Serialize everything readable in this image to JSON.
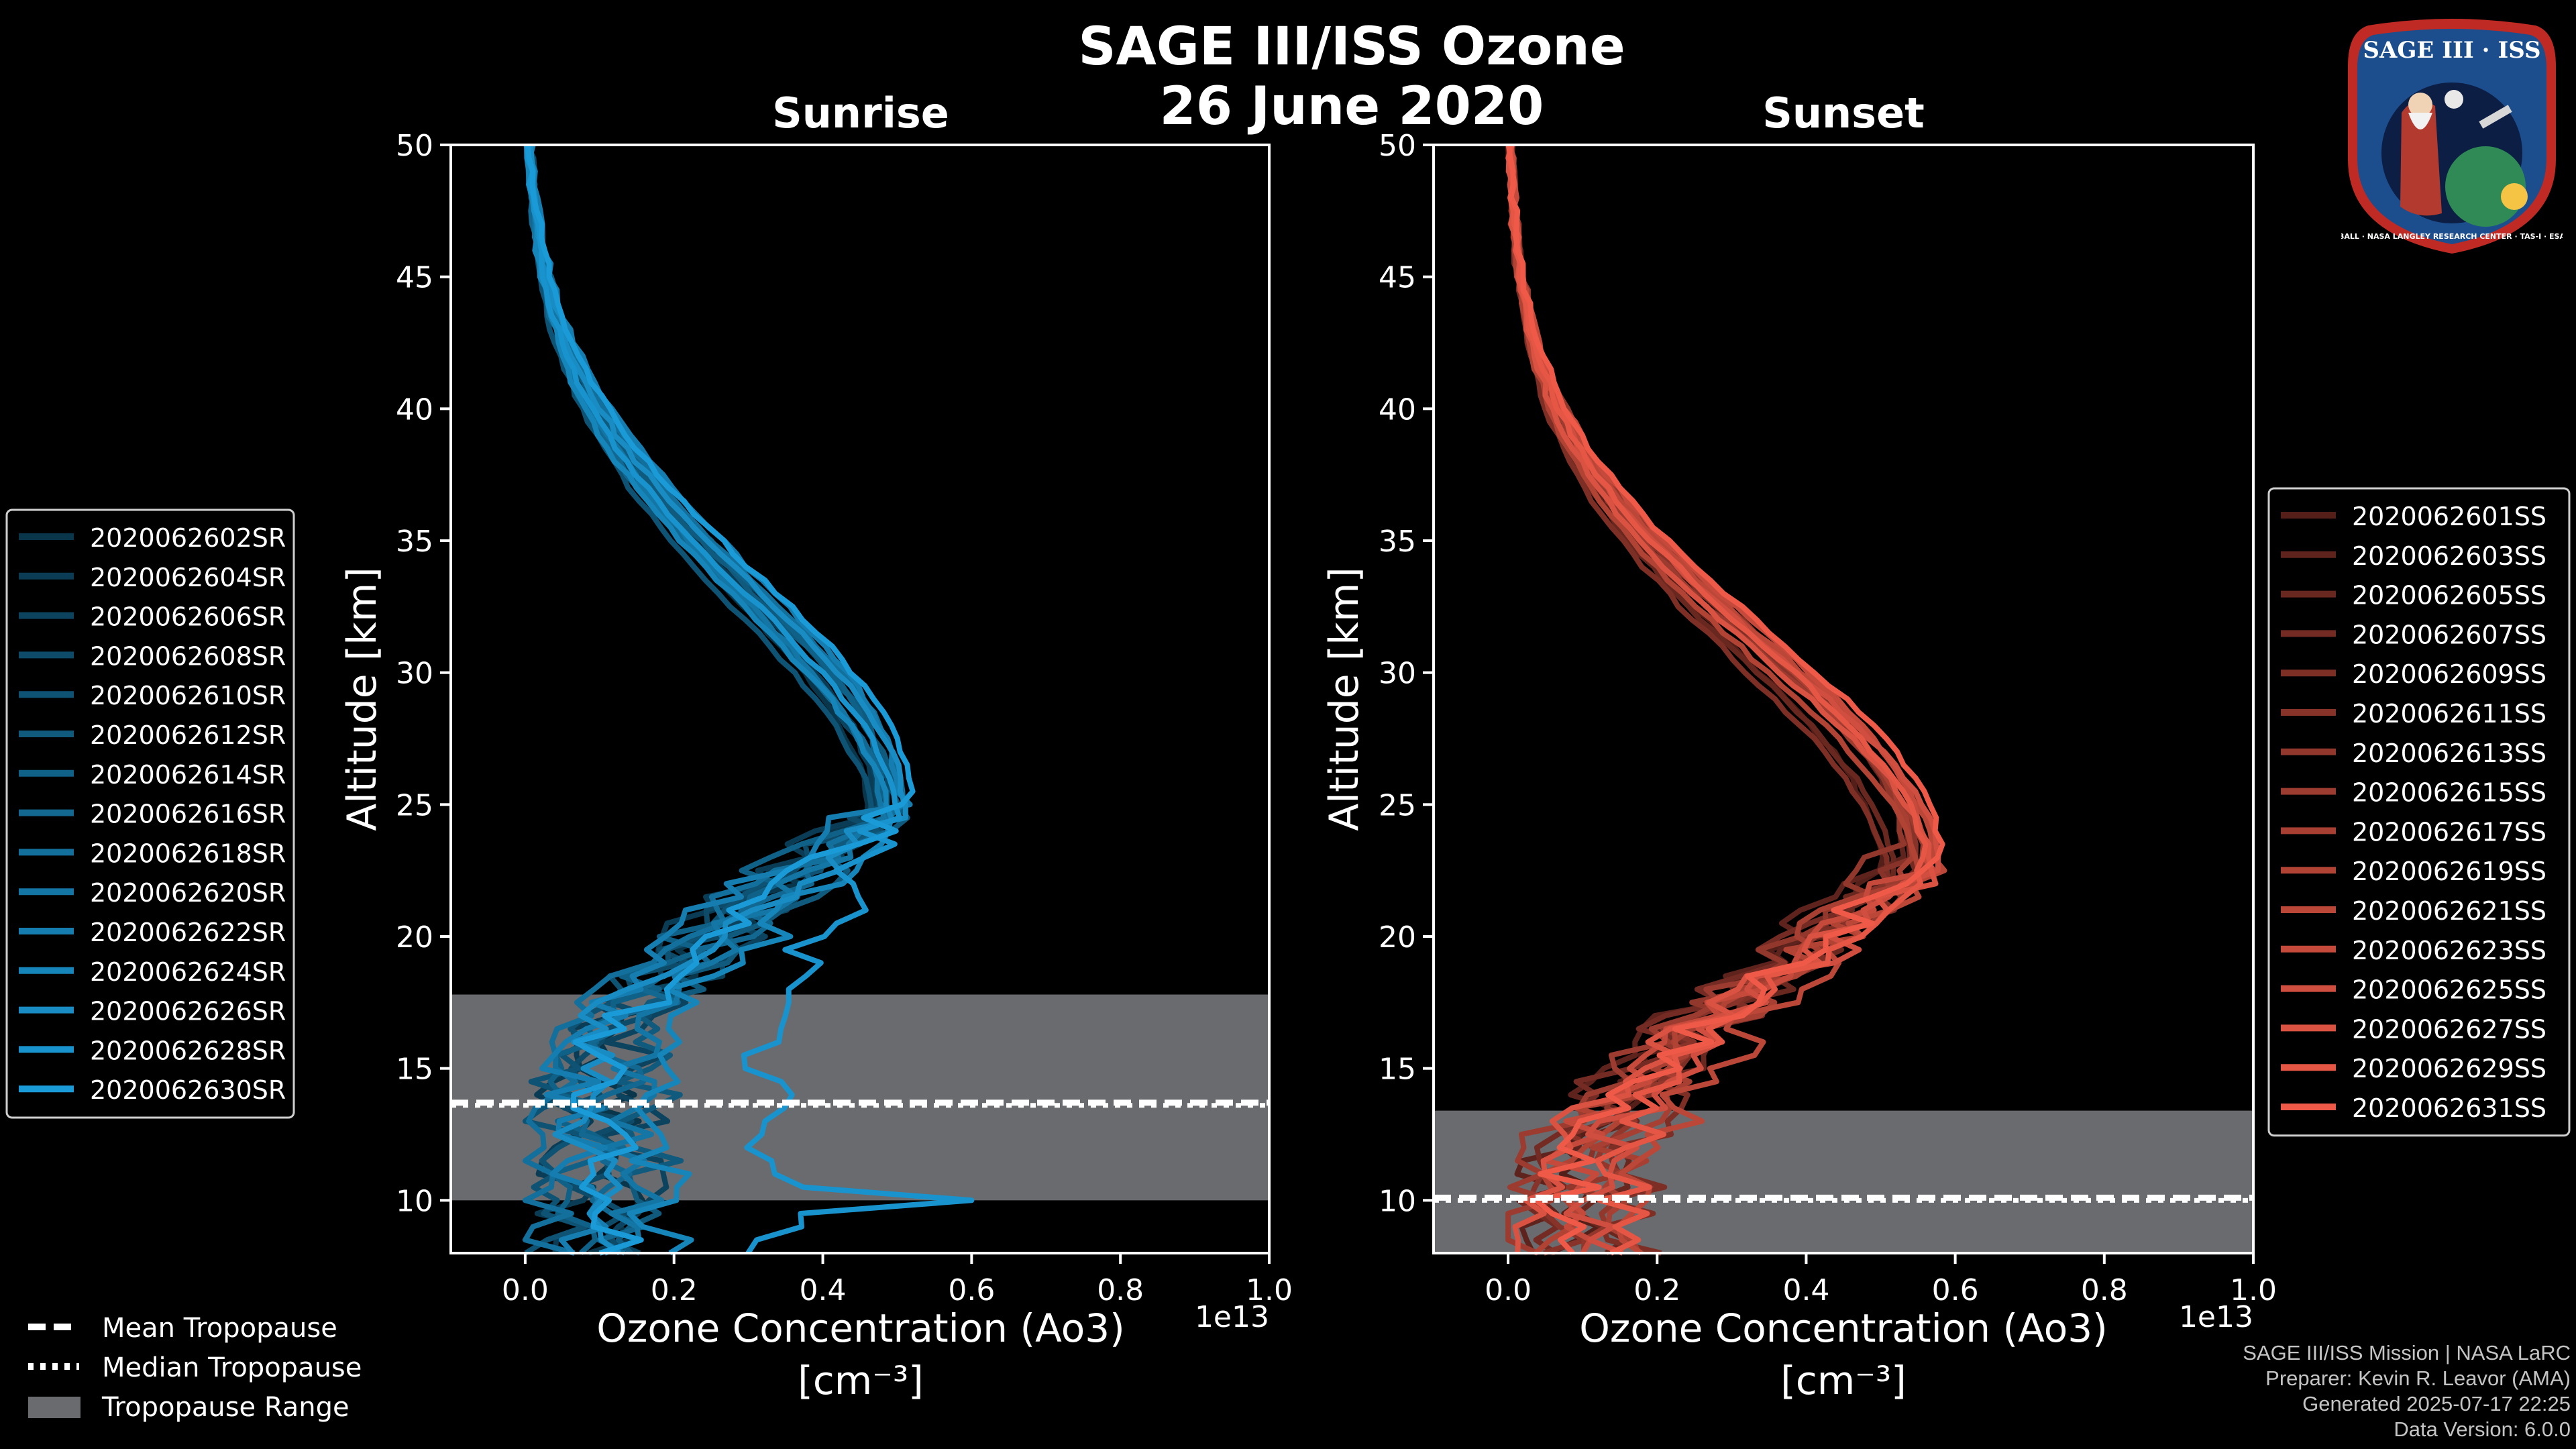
{
  "title": "SAGE III/ISS Ozone",
  "subtitle": "26 June 2020",
  "logo": {
    "top_text": "SAGE III · ISS",
    "ring_text": "BALL · NASA LANGLEY RESEARCH CENTER · TAS-I · ESA"
  },
  "colors": {
    "sunrise": "#1a9ad7",
    "sunset": "#ef5a48",
    "tropopause_range": "#6a6b6e",
    "background": "#000000"
  },
  "footer": {
    "line1": "SAGE III/ISS Mission | NASA LaRC",
    "line2": "Preparer: Kevin R. Leavor (AMA)",
    "line3": "Generated 2025-07-17 22:25",
    "line4": "Data Version: 6.0.0"
  },
  "chart_data": [
    {
      "type": "line",
      "title": "Sunrise",
      "xlabel": "Ozone Concentration (Ao3)",
      "xunit": "[cm⁻³]",
      "x_scale_label": "1e13",
      "ylabel": "Altitude [km]",
      "xlim": [
        -0.1,
        1.0
      ],
      "ylim": [
        8,
        50
      ],
      "xticks": [
        "0.0",
        "0.2",
        "0.4",
        "0.6",
        "0.8",
        "1.0"
      ],
      "yticks": [
        "10",
        "15",
        "20",
        "25",
        "30",
        "35",
        "40",
        "45",
        "50"
      ],
      "tropopause": {
        "mean": 13.7,
        "median": 13.7,
        "range": [
          10.0,
          17.8
        ]
      },
      "legend_position": "left",
      "series": [
        {
          "name": "2020062602SR",
          "peak_x": 0.46,
          "peak_alt": 24.5,
          "low_x": 0.22
        },
        {
          "name": "2020062604SR",
          "peak_x": 0.47,
          "peak_alt": 24.8,
          "low_x": 0.1
        },
        {
          "name": "2020062606SR",
          "peak_x": 0.48,
          "peak_alt": 24.2,
          "low_x": 0.27
        },
        {
          "name": "2020062608SR",
          "peak_x": 0.49,
          "peak_alt": 25.0,
          "low_x": 0.18
        },
        {
          "name": "2020062610SR",
          "peak_x": 0.47,
          "peak_alt": 23.8,
          "low_x": 0.08
        },
        {
          "name": "2020062612SR",
          "peak_x": 0.5,
          "peak_alt": 24.6,
          "low_x": 0.3
        },
        {
          "name": "2020062614SR",
          "peak_x": 0.48,
          "peak_alt": 25.2,
          "low_x": 0.14
        },
        {
          "name": "2020062616SR",
          "peak_x": 0.49,
          "peak_alt": 24.0,
          "low_x": 0.21
        },
        {
          "name": "2020062618SR",
          "peak_x": 0.51,
          "peak_alt": 24.9,
          "low_x": 0.05
        },
        {
          "name": "2020062620SR",
          "peak_x": 0.48,
          "peak_alt": 24.4,
          "low_x": 0.25
        },
        {
          "name": "2020062622SR",
          "peak_x": 0.5,
          "peak_alt": 25.4,
          "low_x": 0.12
        },
        {
          "name": "2020062624SR",
          "peak_x": 0.49,
          "peak_alt": 23.9,
          "low_x": 0.32
        },
        {
          "name": "2020062626SR",
          "peak_x": 0.51,
          "peak_alt": 24.7,
          "low_x": 0.16
        },
        {
          "name": "2020062628SR",
          "peak_x": 0.5,
          "peak_alt": 24.3,
          "low_x": 0.6
        },
        {
          "name": "2020062630SR",
          "peak_x": 0.52,
          "peak_alt": 25.1,
          "low_x": 0.2
        }
      ]
    },
    {
      "type": "line",
      "title": "Sunset",
      "xlabel": "Ozone Concentration (Ao3)",
      "xunit": "[cm⁻³]",
      "x_scale_label": "1e13",
      "ylabel": "Altitude [km]",
      "xlim": [
        -0.1,
        1.0
      ],
      "ylim": [
        8,
        50
      ],
      "xticks": [
        "0.0",
        "0.2",
        "0.4",
        "0.6",
        "0.8",
        "1.0"
      ],
      "yticks": [
        "10",
        "15",
        "20",
        "25",
        "30",
        "35",
        "40",
        "45",
        "50"
      ],
      "tropopause": {
        "mean": 10.1,
        "median": 10.1,
        "range": [
          8.0,
          13.4
        ]
      },
      "legend_position": "right",
      "series": [
        {
          "name": "2020062601SS",
          "peak_x": 0.5,
          "peak_alt": 22.5,
          "low_x": 0.18
        },
        {
          "name": "2020062603SS",
          "peak_x": 0.53,
          "peak_alt": 23.0,
          "low_x": 0.1
        },
        {
          "name": "2020062605SS",
          "peak_x": 0.52,
          "peak_alt": 22.0,
          "low_x": 0.24
        },
        {
          "name": "2020062607SS",
          "peak_x": 0.54,
          "peak_alt": 22.8,
          "low_x": 0.08
        },
        {
          "name": "2020062609SS",
          "peak_x": 0.51,
          "peak_alt": 21.8,
          "low_x": 0.3
        },
        {
          "name": "2020062611SS",
          "peak_x": 0.55,
          "peak_alt": 22.6,
          "low_x": 0.14
        },
        {
          "name": "2020062613SS",
          "peak_x": 0.53,
          "peak_alt": 23.3,
          "low_x": 0.2
        },
        {
          "name": "2020062615SS",
          "peak_x": 0.56,
          "peak_alt": 22.2,
          "low_x": 0.05
        },
        {
          "name": "2020062617SS",
          "peak_x": 0.54,
          "peak_alt": 22.9,
          "low_x": 0.26
        },
        {
          "name": "2020062619SS",
          "peak_x": 0.55,
          "peak_alt": 21.9,
          "low_x": 0.12
        },
        {
          "name": "2020062621SS",
          "peak_x": 0.57,
          "peak_alt": 22.7,
          "low_x": 0.34
        },
        {
          "name": "2020062623SS",
          "peak_x": 0.56,
          "peak_alt": 23.1,
          "low_x": 0.16
        },
        {
          "name": "2020062625SS",
          "peak_x": 0.58,
          "peak_alt": 22.4,
          "low_x": 0.22
        },
        {
          "name": "2020062627SS",
          "peak_x": 0.57,
          "peak_alt": 22.0,
          "low_x": 0.09
        },
        {
          "name": "2020062629SS",
          "peak_x": 0.56,
          "peak_alt": 22.6,
          "low_x": 0.28
        },
        {
          "name": "2020062631SS",
          "peak_x": 0.58,
          "peak_alt": 23.0,
          "low_x": 0.15
        }
      ]
    }
  ],
  "shared_legend": {
    "position": "lower-left",
    "entries": [
      "Mean Tropopause",
      "Median Tropopause",
      "Tropopause Range"
    ]
  }
}
